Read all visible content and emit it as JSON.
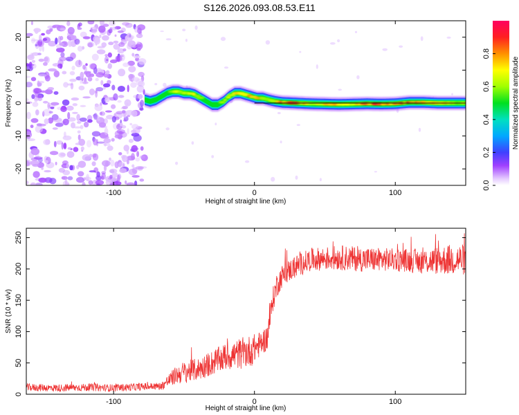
{
  "title": "S126.2026.093.08.53.E11",
  "chart_data": [
    {
      "type": "heatmap",
      "name": "spectrogram",
      "xlabel": "Height of straight line (km)",
      "ylabel": "Frequency (Hz)",
      "xlim": [
        -162,
        150
      ],
      "ylim": [
        -25,
        25
      ],
      "xticks": [
        -100,
        0,
        100
      ],
      "xtick_labels": [
        "-100",
        "0",
        "100"
      ],
      "yticks": [
        20,
        10,
        0,
        -10,
        -20
      ],
      "ytick_labels": [
        "20",
        "10",
        "0",
        "-10",
        "-20"
      ],
      "noise_region": {
        "x_start": -162,
        "x_end": -78,
        "description_amplitude": [
          0.0,
          0.3
        ]
      },
      "signal_trace": {
        "x": [
          -78,
          -74,
          -70,
          -66,
          -62,
          -58,
          -54,
          -50,
          -46,
          -42,
          -38,
          -34,
          -30,
          -26,
          -22,
          -18,
          -14,
          -10,
          -6,
          -2,
          2,
          6,
          10,
          15,
          20,
          30,
          40,
          50,
          60,
          70,
          80,
          90,
          100,
          110,
          120,
          130,
          140,
          150
        ],
        "freq": [
          1.0,
          0.5,
          1.0,
          2.0,
          3.0,
          3.5,
          3.5,
          3.0,
          3.0,
          2.5,
          1.5,
          0.5,
          -0.5,
          -0.5,
          0.5,
          2.0,
          3.0,
          3.0,
          2.5,
          2.0,
          1.5,
          1.5,
          1.0,
          0.5,
          0.2,
          0.0,
          -0.2,
          -0.3,
          -0.4,
          -0.3,
          -0.2,
          -0.3,
          -0.2,
          0.2,
          0.2,
          0.0,
          0.0,
          0.0
        ],
        "amp": [
          0.45,
          0.5,
          0.5,
          0.55,
          0.6,
          0.62,
          0.65,
          0.62,
          0.7,
          0.7,
          0.6,
          0.55,
          0.5,
          0.55,
          0.6,
          0.75,
          0.8,
          0.7,
          0.75,
          0.85,
          0.85,
          0.7,
          0.65,
          0.75,
          0.85,
          0.9,
          0.7,
          0.75,
          0.8,
          0.75,
          0.85,
          0.9,
          0.8,
          0.9,
          0.85,
          0.75,
          0.7,
          0.7
        ]
      },
      "colorbar": {
        "label": "Normalized spectral amplitude",
        "range": [
          0,
          1
        ],
        "ticks": [
          0.0,
          0.2,
          0.4,
          0.6,
          0.8
        ],
        "tick_labels": [
          "0.0",
          "0.2",
          "0.4",
          "0.6",
          "0.8"
        ],
        "colormap": "rainbow"
      }
    },
    {
      "type": "line",
      "name": "snr",
      "xlabel": "Height of straight line (km)",
      "ylabel": "SNR (10 * v/v)",
      "xlim": [
        -162,
        150
      ],
      "ylim": [
        0,
        265
      ],
      "xticks": [
        -100,
        0,
        100
      ],
      "xtick_labels": [
        "-100",
        "0",
        "100"
      ],
      "yticks": [
        0,
        50,
        100,
        150,
        200,
        250
      ],
      "ytick_labels": [
        "0",
        "50",
        "100",
        "150",
        "200",
        "250"
      ],
      "color": "#ee3333",
      "series": [
        {
          "name": "SNR",
          "x": [
            -162,
            -140,
            -120,
            -100,
            -80,
            -66,
            -62,
            -56,
            -50,
            -40,
            -30,
            -20,
            -10,
            -2,
            4,
            9,
            11,
            13,
            16,
            20,
            30,
            40,
            60,
            80,
            100,
            120,
            140,
            150
          ],
          "mean": [
            11,
            10,
            11,
            10,
            12,
            13,
            20,
            30,
            35,
            40,
            50,
            60,
            65,
            70,
            80,
            90,
            120,
            150,
            175,
            190,
            205,
            215,
            218,
            215,
            215,
            212,
            215,
            215
          ],
          "spread": [
            6,
            6,
            6,
            6,
            6,
            6,
            10,
            14,
            18,
            18,
            20,
            22,
            25,
            25,
            20,
            20,
            20,
            20,
            20,
            18,
            18,
            18,
            20,
            20,
            18,
            20,
            25,
            25
          ]
        }
      ]
    }
  ]
}
